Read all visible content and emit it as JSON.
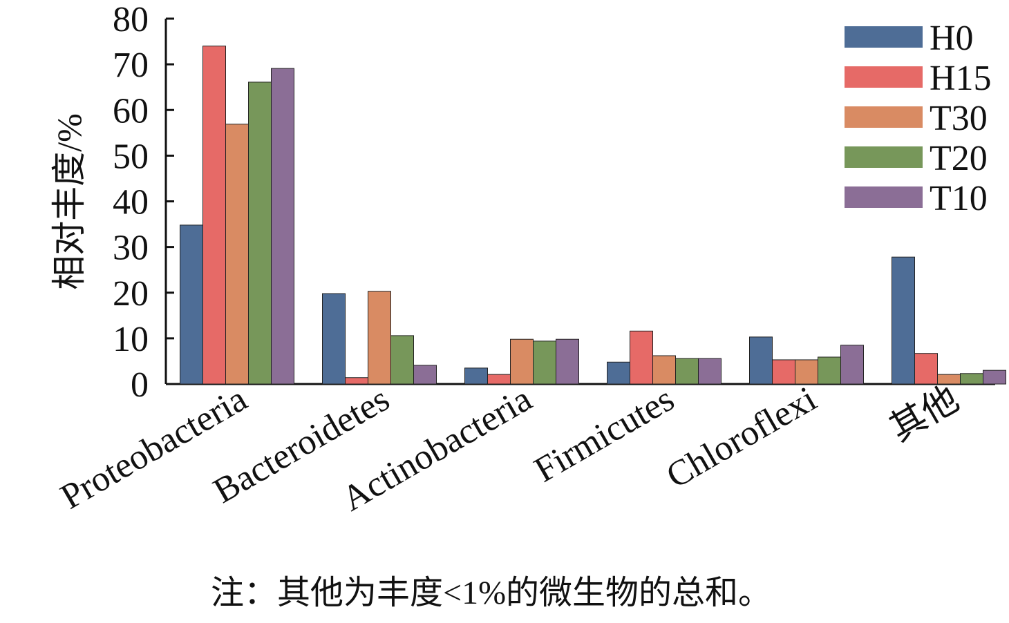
{
  "chart_data": {
    "type": "bar",
    "title": "",
    "xlabel": "",
    "ylabel": "相对丰度/%",
    "ylim": [
      0,
      80
    ],
    "yticks": [
      0,
      10,
      20,
      30,
      40,
      50,
      60,
      70,
      80
    ],
    "categories": [
      "Proteobacteria",
      "Bacteroidetes",
      "Actinobacteria",
      "Firmicutes",
      "Chloroflexi",
      "其他"
    ],
    "series": [
      {
        "name": "H0",
        "color": "#4e6d96",
        "values": [
          34.8,
          19.8,
          3.5,
          4.8,
          10.3,
          27.8
        ]
      },
      {
        "name": "H15",
        "color": "#e66a67",
        "values": [
          74.0,
          1.4,
          2.1,
          11.6,
          5.3,
          6.7
        ]
      },
      {
        "name": "T30",
        "color": "#d98b63",
        "values": [
          56.9,
          20.3,
          9.8,
          6.2,
          5.3,
          2.1
        ]
      },
      {
        "name": "T20",
        "color": "#77975a",
        "values": [
          66.1,
          10.6,
          9.4,
          5.6,
          5.9,
          2.3
        ]
      },
      {
        "name": "T10",
        "color": "#8b6e96",
        "values": [
          69.1,
          4.1,
          9.8,
          5.6,
          8.5,
          3.0
        ]
      }
    ],
    "legend": "top-right",
    "grid": false,
    "note": "注：其他为丰度<1%的微生物的总和。"
  }
}
